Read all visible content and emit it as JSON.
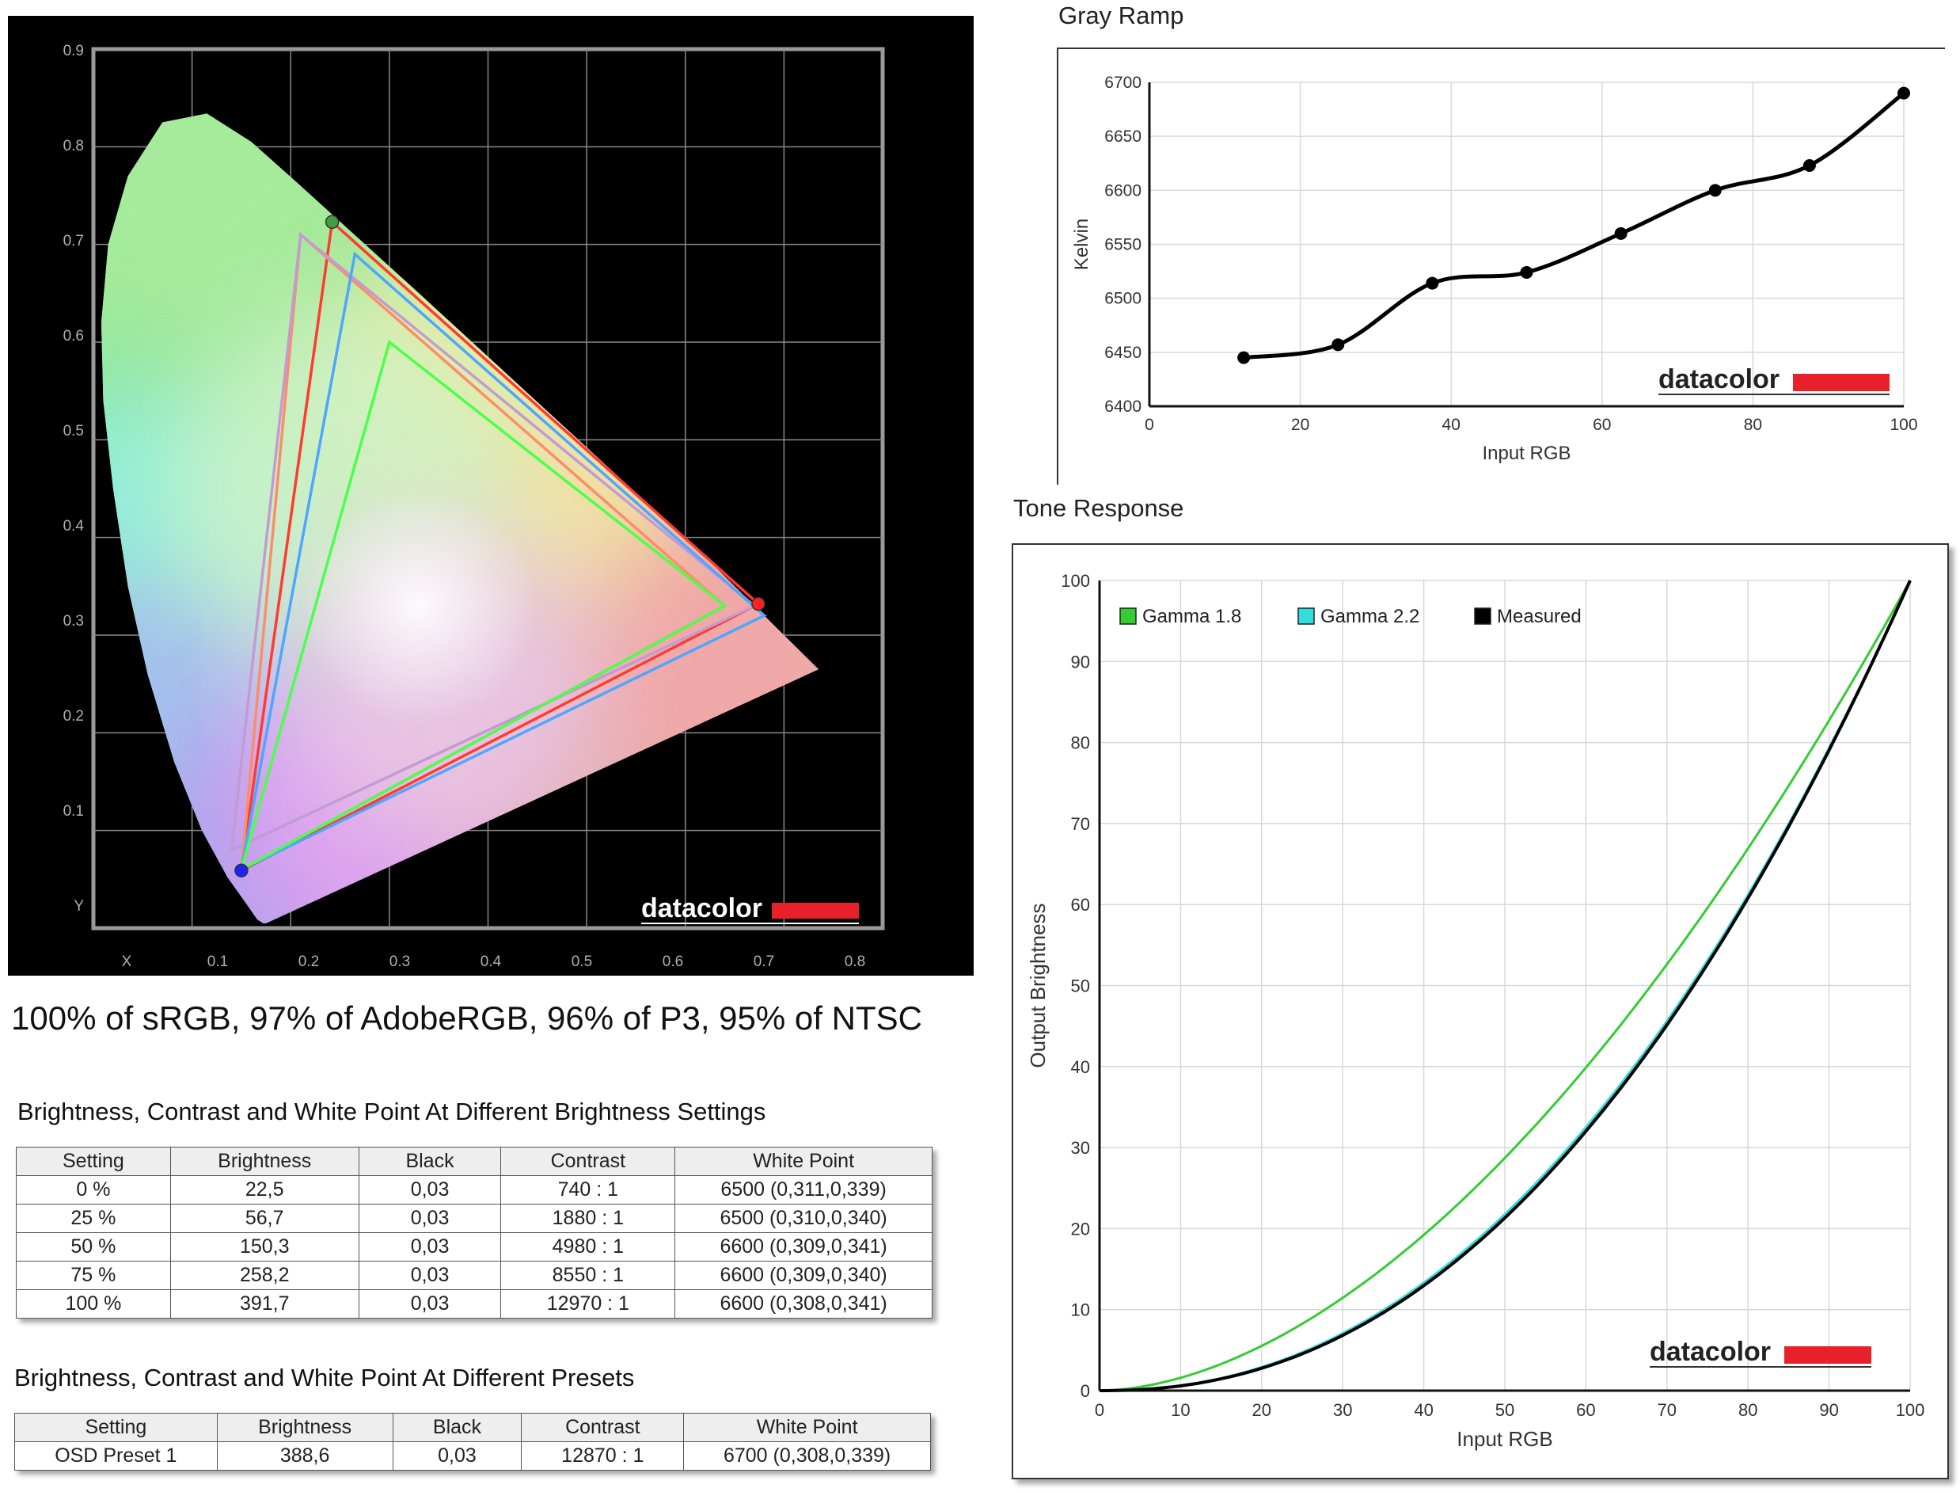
{
  "cie_chart": {
    "chart_data": {
      "type": "scatter",
      "xlim": [
        0,
        0.8
      ],
      "ylim": [
        0,
        0.9
      ],
      "x_ticks": [
        "X",
        "0.1",
        "0.2",
        "0.3",
        "0.4",
        "0.5",
        "0.6",
        "0.7",
        "0.8"
      ],
      "y_ticks": [
        "Y",
        "0.1",
        "0.2",
        "0.3",
        "0.4",
        "0.5",
        "0.6",
        "0.7",
        "0.8",
        "0.9"
      ],
      "grid": true,
      "gamut_triangles": [
        {
          "color": "#ff3b30",
          "points": [
            [
              0.674,
              0.332
            ],
            [
              0.242,
              0.723
            ],
            [
              0.15,
              0.059
            ]
          ]
        },
        {
          "color": "#ff8c69",
          "points": [
            [
              0.64,
              0.33
            ],
            [
              0.21,
              0.71
            ],
            [
              0.15,
              0.06
            ]
          ]
        },
        {
          "color": "#c39bd3",
          "points": [
            [
              0.67,
              0.33
            ],
            [
              0.21,
              0.71
            ],
            [
              0.14,
              0.08
            ]
          ]
        },
        {
          "color": "#4da6ff",
          "points": [
            [
              0.68,
              0.32
            ],
            [
              0.265,
              0.69
            ],
            [
              0.15,
              0.06
            ]
          ]
        },
        {
          "color": "#4cff4c",
          "points": [
            [
              0.64,
              0.33
            ],
            [
              0.3,
              0.6
            ],
            [
              0.15,
              0.06
            ]
          ]
        }
      ],
      "measured_primaries": [
        {
          "color": "#ff2020",
          "point": [
            0.674,
            0.332
          ]
        },
        {
          "color": "#40a040",
          "point": [
            0.242,
            0.723
          ]
        },
        {
          "color": "#2020ff",
          "point": [
            0.15,
            0.059
          ]
        }
      ]
    },
    "logo_text": "datacolor",
    "accent_color": "#e8202a"
  },
  "gamut_summary": "100% of sRGB, 97% of AdobeRGB, 96% of P3, 95% of NTSC",
  "gray_ramp": {
    "title": "Gray Ramp",
    "logo_text": "datacolor",
    "chart_data": {
      "type": "line",
      "title": "Gray Ramp",
      "xlabel": "Input RGB",
      "ylabel": "Kelvin",
      "xlim": [
        0,
        100
      ],
      "ylim": [
        6400,
        6700
      ],
      "x_ticks": [
        0,
        20,
        40,
        60,
        80,
        100
      ],
      "y_ticks": [
        6400,
        6450,
        6500,
        6550,
        6600,
        6650,
        6700
      ],
      "grid": true,
      "x": [
        12.5,
        25,
        37.5,
        50,
        62.5,
        75,
        87.5,
        100
      ],
      "values": [
        6445,
        6457,
        6514,
        6524,
        6560,
        6600,
        6623,
        6690
      ]
    }
  },
  "tone_response": {
    "title": "Tone Response",
    "logo_text": "datacolor",
    "chart_data": {
      "type": "line",
      "title": "Tone Response",
      "xlabel": "Input RGB",
      "ylabel": "Output Brightness",
      "xlim": [
        0,
        100
      ],
      "ylim": [
        0,
        100
      ],
      "x_ticks": [
        0,
        10,
        20,
        30,
        40,
        50,
        60,
        70,
        80,
        90,
        100
      ],
      "y_ticks": [
        0,
        10,
        20,
        30,
        40,
        50,
        60,
        70,
        80,
        90,
        100
      ],
      "grid": true,
      "legend_position": "top-left",
      "series": [
        {
          "name": "Gamma 1.8",
          "color": "#33cc33",
          "gamma": 1.8
        },
        {
          "name": "Gamma 2.2",
          "color": "#33dddd",
          "gamma": 2.2
        },
        {
          "name": "Measured",
          "color": "#000000",
          "gamma": 2.23
        }
      ]
    }
  },
  "table_brightness": {
    "title": "Brightness, Contrast and White Point At Different Brightness Settings",
    "headers": [
      "Setting",
      "Brightness",
      "Black",
      "Contrast",
      "White Point"
    ],
    "rows": [
      [
        "0 %",
        "22,5",
        "0,03",
        "740 : 1",
        "6500 (0,311,0,339)"
      ],
      [
        "25 %",
        "56,7",
        "0,03",
        "1880 : 1",
        "6500 (0,310,0,340)"
      ],
      [
        "50 %",
        "150,3",
        "0,03",
        "4980 : 1",
        "6600 (0,309,0,341)"
      ],
      [
        "75 %",
        "258,2",
        "0,03",
        "8550 : 1",
        "6600 (0,309,0,340)"
      ],
      [
        "100 %",
        "391,7",
        "0,03",
        "12970 : 1",
        "6600 (0,308,0,341)"
      ]
    ]
  },
  "table_presets": {
    "title": "Brightness, Contrast and White Point At Different Presets",
    "headers": [
      "Setting",
      "Brightness",
      "Black",
      "Contrast",
      "White Point"
    ],
    "rows": [
      [
        "OSD Preset 1",
        "388,6",
        "0,03",
        "12870 : 1",
        "6700 (0,308,0,339)"
      ]
    ]
  }
}
